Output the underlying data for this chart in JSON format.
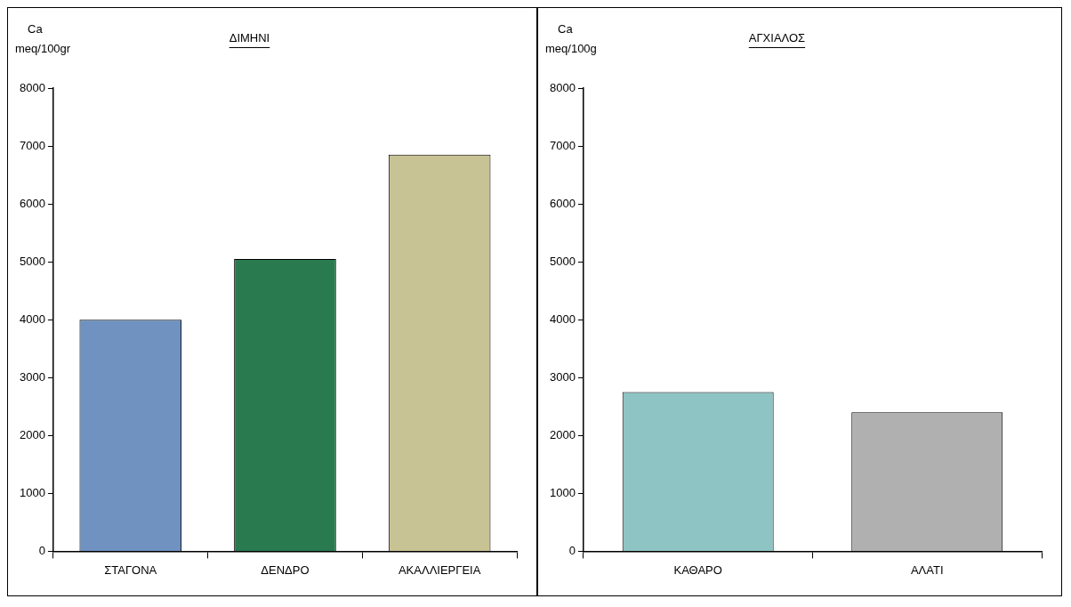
{
  "chart_data": [
    {
      "type": "bar",
      "title": "ΔΙΜΗΝΙ",
      "ylabel": "Ca\nmeq/100gr",
      "categories": [
        "ΣΤΑΓΟΝΑ",
        "ΔΕΝΔΡΟ",
        "ΑΚΑΛΛΙΕΡΓΕΙΑ"
      ],
      "values": [
        4000,
        5050,
        6850
      ],
      "colors": [
        "#6f92c0",
        "#2a7a50",
        "#c8c394"
      ],
      "ylim": [
        0,
        8000
      ],
      "yticks": [
        0,
        1000,
        2000,
        3000,
        4000,
        5000,
        6000,
        7000,
        8000
      ],
      "grid": false,
      "legend": false
    },
    {
      "type": "bar",
      "title": "ΑΓΧΙΑΛΟΣ",
      "ylabel": "Ca\nmeq/100g",
      "categories": [
        "ΚΑΘΑΡΟ",
        "ΑΛΑΤΙ"
      ],
      "values": [
        2750,
        2400
      ],
      "colors": [
        "#8fc4c4",
        "#b0b0b0"
      ],
      "ylim": [
        0,
        8000
      ],
      "yticks": [
        0,
        1000,
        2000,
        3000,
        4000,
        5000,
        6000,
        7000,
        8000
      ],
      "grid": false,
      "legend": false
    }
  ]
}
